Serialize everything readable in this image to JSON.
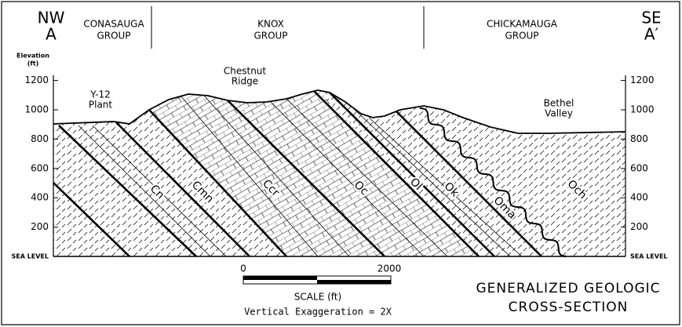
{
  "header": {
    "left": {
      "direction": "NW",
      "label": "A"
    },
    "right": {
      "direction": "SE",
      "label": "A′"
    },
    "groups": [
      [
        "CONASAUGA",
        "GROUP"
      ],
      [
        "KNOX",
        "GROUP"
      ],
      [
        "CHICKAMAUGA",
        "GROUP"
      ]
    ]
  },
  "axis": {
    "title": [
      "Elevation",
      "(ft)"
    ],
    "ticks": [
      "SEA LEVEL",
      "200",
      "400",
      "600",
      "800",
      "1000",
      "1200"
    ]
  },
  "features": [
    [
      "Y-12",
      "Plant"
    ],
    [
      "Chestnut",
      "Ridge"
    ],
    [
      "Bethel",
      "Valley"
    ]
  ],
  "formations": [
    "Cn",
    "Cmn",
    "Ccr",
    "Oc",
    "Ol",
    "Ok",
    "Oma",
    "Och"
  ],
  "scale": {
    "start": "0",
    "end": "2000",
    "label": "SCALE (ft)",
    "exaggeration": "Vertical Exaggeration = 2X"
  },
  "title": [
    "GENERALIZED GEOLOGIC",
    "CROSS-SECTION"
  ]
}
